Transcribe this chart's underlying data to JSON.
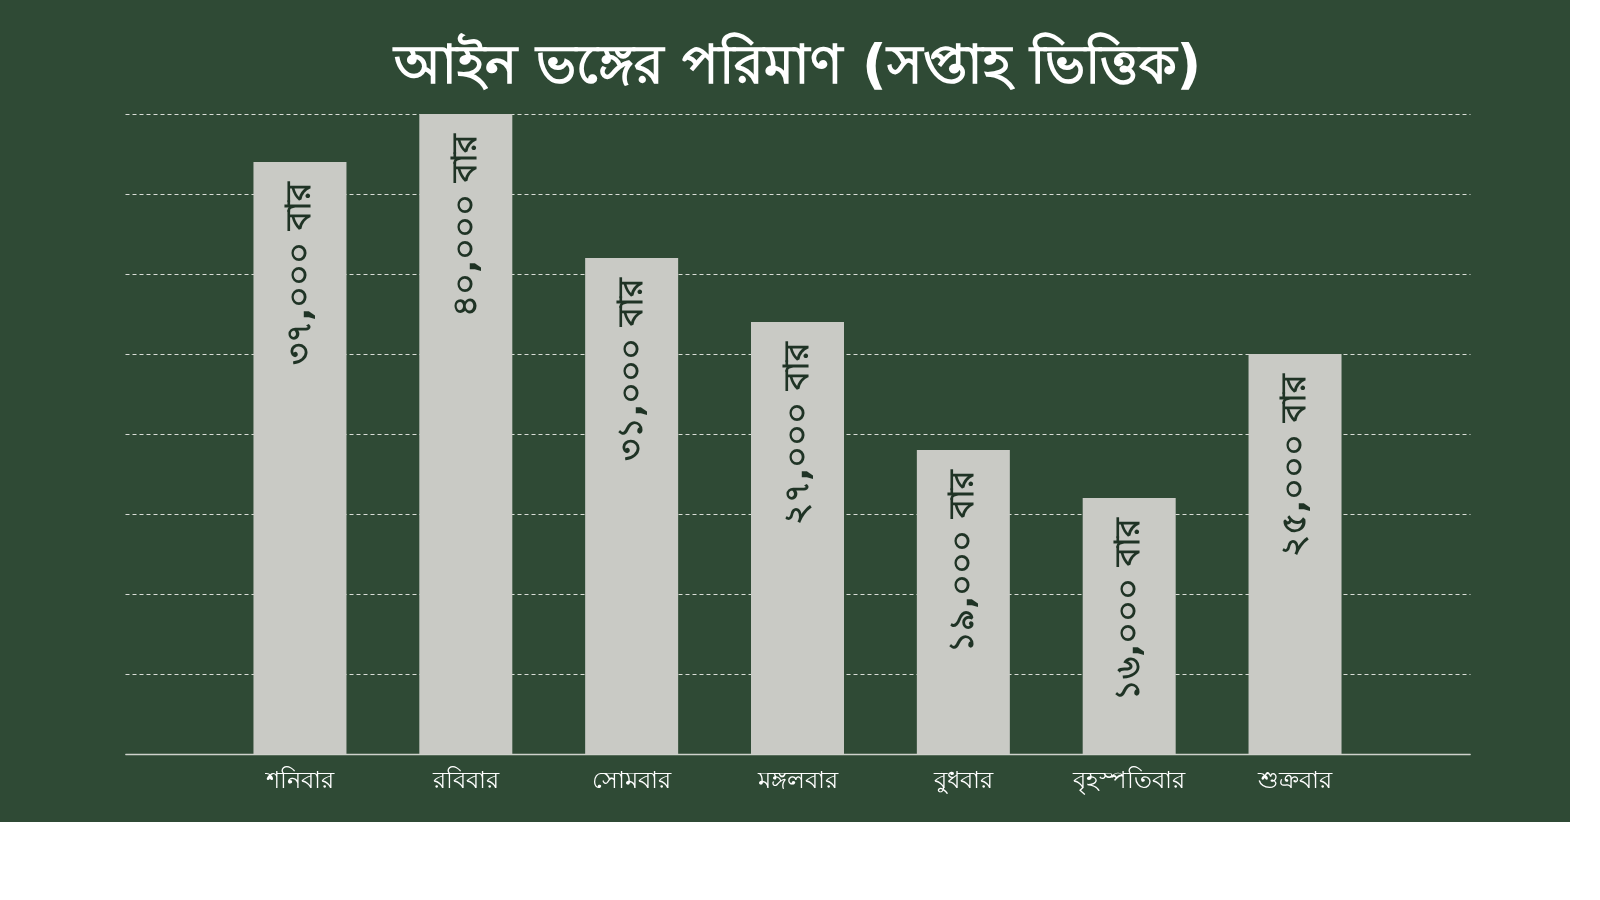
{
  "chart_data": {
    "type": "bar",
    "title": "আইন ভঙ্গের পরিমাণ (সপ্তাহ ভিত্তিক)",
    "categories": [
      "শনিবার",
      "রবিবার",
      "সোমবার",
      "মঙ্গলবার",
      "বুধবার",
      "বৃহস্পতিবার",
      "শুক্রবার"
    ],
    "values": [
      37000,
      40000,
      31000,
      27000,
      19000,
      16000,
      25000
    ],
    "value_labels": [
      "৩৭,০০০ বার",
      "৪০,০০০ বার",
      "৩১,০০০ বার",
      "২৭,০০০ বার",
      "১৯,০০০ বার",
      "১৬,০০০ বার",
      "২৫,০০০ বার"
    ],
    "color": "#c9cac5",
    "ylim": [
      0,
      40000
    ],
    "yticks": [
      {
        "value": 0,
        "label": null
      },
      {
        "value": 5000,
        "label": null
      },
      {
        "value": 10000,
        "label": null
      },
      {
        "value": 15000,
        "label": null
      },
      {
        "value": 20000,
        "label": null
      },
      {
        "value": 25000,
        "label": null
      },
      {
        "value": 30000,
        "label": null
      },
      {
        "value": 35000,
        "label": null
      },
      {
        "value": 40000,
        "label": null
      }
    ],
    "grid": "y",
    "tick_labels": "x"
  }
}
